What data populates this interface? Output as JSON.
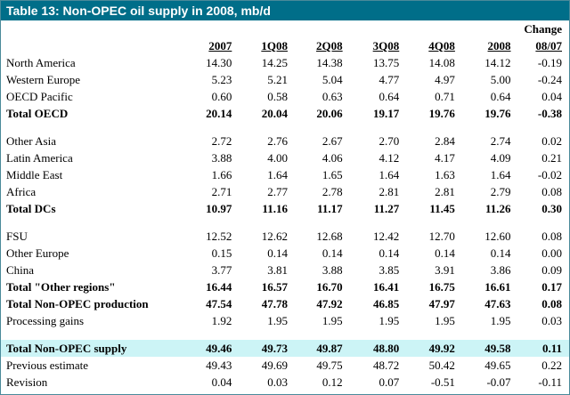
{
  "title": "Table 13: Non-OPEC oil supply in 2008, mb/d",
  "header": {
    "change_top": "Change",
    "columns": [
      "2007",
      "1Q08",
      "2Q08",
      "3Q08",
      "4Q08",
      "2008",
      "08/07"
    ]
  },
  "groups": [
    {
      "rows": [
        {
          "label": "North America",
          "values": [
            "14.30",
            "14.25",
            "14.38",
            "13.75",
            "14.08",
            "14.12",
            "-0.19"
          ]
        },
        {
          "label": "Western Europe",
          "values": [
            "5.23",
            "5.21",
            "5.04",
            "4.77",
            "4.97",
            "5.00",
            "-0.24"
          ]
        },
        {
          "label": "OECD Pacific",
          "values": [
            "0.60",
            "0.58",
            "0.63",
            "0.64",
            "0.71",
            "0.64",
            "0.04"
          ]
        },
        {
          "label": "Total OECD",
          "values": [
            "20.14",
            "20.04",
            "20.06",
            "19.17",
            "19.76",
            "19.76",
            "-0.38"
          ],
          "bold": true
        }
      ]
    },
    {
      "rows": [
        {
          "label": "Other Asia",
          "values": [
            "2.72",
            "2.76",
            "2.67",
            "2.70",
            "2.84",
            "2.74",
            "0.02"
          ]
        },
        {
          "label": "Latin America",
          "values": [
            "3.88",
            "4.00",
            "4.06",
            "4.12",
            "4.17",
            "4.09",
            "0.21"
          ]
        },
        {
          "label": "Middle East",
          "values": [
            "1.66",
            "1.64",
            "1.65",
            "1.64",
            "1.63",
            "1.64",
            "-0.02"
          ]
        },
        {
          "label": "Africa",
          "values": [
            "2.71",
            "2.77",
            "2.78",
            "2.81",
            "2.81",
            "2.79",
            "0.08"
          ]
        },
        {
          "label": "Total DCs",
          "values": [
            "10.97",
            "11.16",
            "11.17",
            "11.27",
            "11.45",
            "11.26",
            "0.30"
          ],
          "bold": true
        }
      ]
    },
    {
      "rows": [
        {
          "label": "FSU",
          "values": [
            "12.52",
            "12.62",
            "12.68",
            "12.42",
            "12.70",
            "12.60",
            "0.08"
          ]
        },
        {
          "label": "Other Europe",
          "values": [
            "0.15",
            "0.14",
            "0.14",
            "0.14",
            "0.14",
            "0.14",
            "0.00"
          ]
        },
        {
          "label": "China",
          "values": [
            "3.77",
            "3.81",
            "3.88",
            "3.85",
            "3.91",
            "3.86",
            "0.09"
          ]
        },
        {
          "label": "Total \"Other regions\"",
          "values": [
            "16.44",
            "16.57",
            "16.70",
            "16.41",
            "16.75",
            "16.61",
            "0.17"
          ],
          "bold": true
        },
        {
          "label": "Total Non-OPEC production",
          "values": [
            "47.54",
            "47.78",
            "47.92",
            "46.85",
            "47.97",
            "47.63",
            "0.08"
          ],
          "bold": true
        },
        {
          "label": "Processing gains",
          "values": [
            "1.92",
            "1.95",
            "1.95",
            "1.95",
            "1.95",
            "1.95",
            "0.03"
          ]
        }
      ]
    },
    {
      "rows": [
        {
          "label": "Total Non-OPEC supply",
          "values": [
            "49.46",
            "49.73",
            "49.87",
            "48.80",
            "49.92",
            "49.58",
            "0.11"
          ],
          "bold": true,
          "highlight": true
        },
        {
          "label": "Previous estimate",
          "values": [
            "49.43",
            "49.69",
            "49.75",
            "48.72",
            "50.42",
            "49.65",
            "0.22"
          ]
        },
        {
          "label": "Revision",
          "values": [
            "0.04",
            "0.03",
            "0.12",
            "0.07",
            "-0.51",
            "-0.07",
            "-0.11"
          ]
        }
      ]
    }
  ],
  "colors": {
    "title_bg": "#006e89",
    "title_fg": "#ffffff",
    "highlight_bg": "#ccf4f6"
  }
}
